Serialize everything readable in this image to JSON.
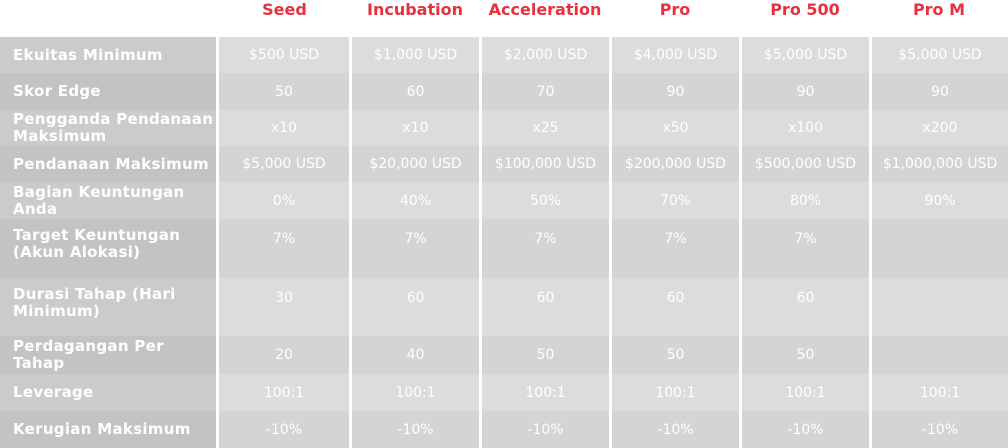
{
  "plans": [
    "Seed",
    "Incubation",
    "Acceleration",
    "Pro",
    "Pro 500",
    "Pro M"
  ],
  "colors": {
    "accent": "#e8303f"
  },
  "rows": [
    {
      "label": "Ekuitas Minimum",
      "values": [
        "$500 USD",
        "$1,000 USD",
        "$2,000 USD",
        "$4,000 USD",
        "$5,000 USD",
        "$5,000 USD"
      ]
    },
    {
      "label": "Skor Edge",
      "values": [
        "50",
        "60",
        "70",
        "90",
        "90",
        "90"
      ]
    },
    {
      "label": "Pengganda Pendanaan Maksimum",
      "values": [
        "x10",
        "x10",
        "x25",
        "x50",
        "x100",
        "x200"
      ]
    },
    {
      "label": "Pendanaan Maksimum",
      "values": [
        "$5,000 USD",
        "$20,000 USD",
        "$100,000 USD",
        "$200,000 USD",
        "$500,000 USD",
        "$1,000,000 USD"
      ]
    },
    {
      "label": "Bagian Keuntungan Anda",
      "values": [
        "0%",
        "40%",
        "50%",
        "70%",
        "80%",
        "90%"
      ]
    },
    {
      "label": "Target Keuntungan (Akun Alokasi)",
      "values": [
        "7%",
        "7%",
        "7%",
        "7%",
        "7%",
        ""
      ]
    },
    {
      "label": "Durasi Tahap (Hari Minimum)",
      "values": [
        "30",
        "60",
        "60",
        "60",
        "60",
        ""
      ]
    },
    {
      "label": "Perdagangan Per Tahap",
      "values": [
        "20",
        "40",
        "50",
        "50",
        "50",
        ""
      ]
    },
    {
      "label": "Leverage",
      "values": [
        "100:1",
        "100:1",
        "100:1",
        "100:1",
        "100:1",
        "100:1"
      ]
    },
    {
      "label": "Kerugian Maksimum",
      "values": [
        "-10%",
        "-10%",
        "-10%",
        "-10%",
        "-10%",
        "-10%"
      ]
    }
  ]
}
